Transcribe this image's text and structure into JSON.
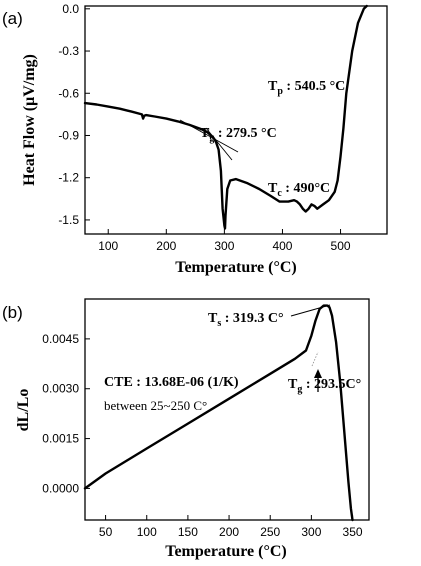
{
  "chart_data": [
    {
      "panel_label": "(a)",
      "type": "line",
      "xlabel": "Temperature (°C)",
      "ylabel": "Heat Flow (μV/mg)",
      "xlim": [
        60,
        580
      ],
      "ylim": [
        -1.6,
        0.02
      ],
      "xticks": [
        "100",
        "200",
        "300",
        "400",
        "500"
      ],
      "yticks": [
        "0.0",
        "-0.3",
        "-0.6",
        "-0.9",
        "-1.2",
        "-1.5"
      ],
      "grid": false,
      "series": [
        {
          "x": [
            60,
            80,
            100,
            120,
            140,
            158,
            160,
            162,
            165,
            180,
            200,
            220,
            240,
            260,
            270,
            280,
            285,
            290,
            294,
            297,
            300,
            301,
            302,
            305,
            310,
            320,
            340,
            360,
            380,
            395,
            410,
            420,
            425,
            430,
            435,
            440,
            445,
            450,
            455,
            460,
            470,
            480,
            490,
            495,
            500,
            505,
            510,
            520,
            530,
            540,
            545
          ],
          "y": [
            -0.67,
            -0.68,
            -0.695,
            -0.71,
            -0.73,
            -0.75,
            -0.78,
            -0.76,
            -0.755,
            -0.765,
            -0.78,
            -0.8,
            -0.825,
            -0.855,
            -0.875,
            -0.91,
            -0.94,
            -1.0,
            -1.15,
            -1.42,
            -1.54,
            -1.56,
            -1.47,
            -1.28,
            -1.22,
            -1.21,
            -1.24,
            -1.28,
            -1.33,
            -1.37,
            -1.37,
            -1.36,
            -1.37,
            -1.39,
            -1.42,
            -1.44,
            -1.42,
            -1.39,
            -1.4,
            -1.42,
            -1.39,
            -1.36,
            -1.3,
            -1.22,
            -1.05,
            -0.85,
            -0.6,
            -0.3,
            -0.1,
            0.0,
            0.02
          ]
        }
      ],
      "annotations": [
        {
          "sym": "T",
          "sub": "p",
          "val": " : 540.5 °C"
        },
        {
          "sym": "T",
          "sub": "g",
          "val": " : 279.5 °C"
        },
        {
          "sym": "T",
          "sub": "c",
          "val": " : 490°C"
        }
      ]
    },
    {
      "panel_label": "(b)",
      "type": "line",
      "xlabel": "Temperature (°C)",
      "ylabel": "dL/Lo",
      "xlim": [
        25,
        370
      ],
      "ylim": [
        -0.00095,
        0.0057
      ],
      "xticks": [
        "50",
        "100",
        "150",
        "200",
        "250",
        "300",
        "350"
      ],
      "yticks": [
        "0.0000",
        "0.0015",
        "0.0030",
        "0.0045"
      ],
      "grid": false,
      "series": [
        {
          "x": [
            25,
            50,
            100,
            150,
            200,
            250,
            280,
            293.5,
            300,
            305,
            310,
            315,
            319.3,
            322,
            325,
            330,
            335,
            340,
            345,
            348,
            350
          ],
          "y": [
            0.0,
            0.00045,
            0.0012,
            0.00195,
            0.0027,
            0.00345,
            0.0039,
            0.00415,
            0.0046,
            0.00505,
            0.0054,
            0.0055,
            0.0055,
            0.00545,
            0.0052,
            0.0044,
            0.0032,
            0.0017,
            0.0002,
            -0.0006,
            -0.00095
          ]
        }
      ],
      "cte_text": "CTE : 13.68E-06 (1/K)",
      "range_text": "between 25~250 C°",
      "annotations": [
        {
          "sym": "T",
          "sub": "s",
          "val": " : 319.3 C°"
        },
        {
          "sym": "T",
          "sub": "g",
          "val": " : 293.5C°"
        }
      ]
    }
  ]
}
